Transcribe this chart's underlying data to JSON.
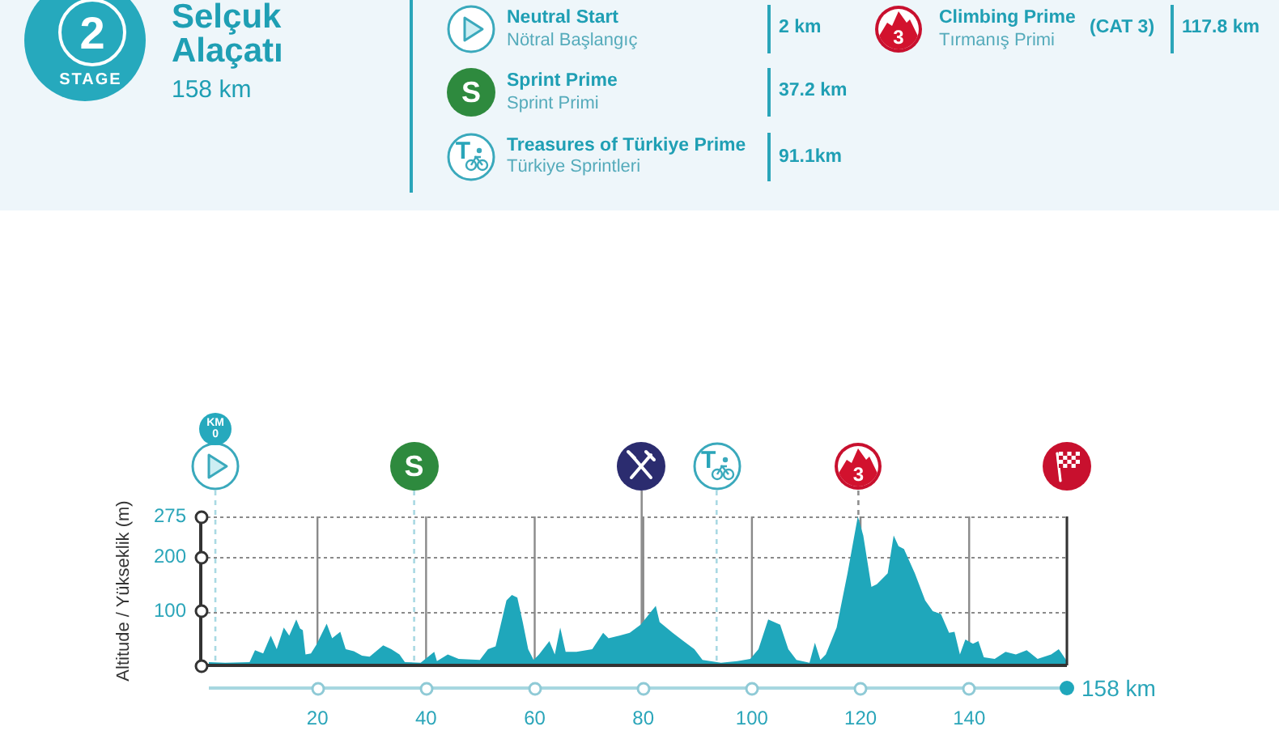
{
  "chart_data": {
    "type": "area",
    "title": "Selçuk Alaçatı",
    "subtitle": "158 km",
    "ylabel": "Altitude / Yükseklik (m)",
    "x": [
      0,
      3,
      7.5,
      8.5,
      10,
      11.4,
      12.5,
      13.8,
      14.8,
      16.1,
      16.8,
      17.3,
      17.8,
      18.8,
      19.8,
      21.7,
      22.7,
      24.2,
      25.2,
      26.7,
      28.2,
      29.6,
      32.1,
      33.6,
      35.1,
      36.1,
      39,
      41.5,
      42,
      44,
      46,
      49.9,
      51.4,
      52.8,
      54.8,
      55.8,
      56.8,
      57.8,
      58.8,
      59.8,
      60.8,
      62.7,
      63.7,
      64.7,
      65.7,
      67.7,
      70.6,
      72.6,
      73.6,
      75.6,
      77.5,
      79.5,
      81.5,
      82.3,
      83,
      85.4,
      87.4,
      89.4,
      90.9,
      94.3,
      97.3,
      99.7,
      101.2,
      103,
      105.2,
      106.7,
      108.2,
      110.6,
      111.6,
      112.6,
      113.6,
      115.6,
      117.6,
      119.5,
      120.5,
      122,
      123,
      125,
      126.1,
      127,
      128,
      130,
      131.9,
      133.3,
      134.8,
      136.3,
      137.3,
      138.3,
      139.3,
      140.7,
      141.7,
      142.7,
      144.7,
      146.7,
      148.6,
      150.6,
      152.6,
      155.1,
      156.5,
      158
    ],
    "values": [
      6,
      5,
      6,
      28,
      22,
      55,
      30,
      70,
      55,
      85,
      68,
      65,
      20,
      22,
      38,
      77,
      50,
      62,
      30,
      26,
      18,
      16,
      37,
      30,
      20,
      6,
      5,
      25,
      8,
      20,
      12,
      10,
      30,
      35,
      120,
      130,
      125,
      80,
      30,
      10,
      20,
      45,
      20,
      70,
      25,
      25,
      30,
      60,
      50,
      55,
      60,
      75,
      100,
      110,
      80,
      60,
      45,
      30,
      10,
      5,
      8,
      12,
      30,
      85,
      75,
      30,
      10,
      5,
      42,
      10,
      20,
      70,
      170,
      275,
      240,
      145,
      150,
      170,
      240,
      220,
      215,
      170,
      120,
      100,
      95,
      60,
      62,
      20,
      48,
      40,
      45,
      15,
      12,
      25,
      20,
      28,
      12,
      20,
      30,
      8
    ],
    "color": "#1fa7bb",
    "xlim": [
      0,
      158
    ],
    "xticks": [
      20,
      40,
      60,
      80,
      100,
      120,
      140,
      {
        "value": 158,
        "label": null
      }
    ],
    "ylim": [
      0,
      275
    ],
    "yticks": [
      {
        "value": 0,
        "label": null
      },
      100,
      200,
      275
    ],
    "grid": true,
    "ref_lines": [
      {
        "axis": "x",
        "value": 1.2,
        "color": "#a9d9e3",
        "line_style": "dashed"
      },
      {
        "axis": "x",
        "value": 37.8,
        "color": "#a9d9e3",
        "line_style": "dashed"
      },
      {
        "axis": "x",
        "value": 79.7,
        "color": "#8f8f8f",
        "line_style": "solid"
      },
      {
        "axis": "x",
        "value": 93.5,
        "color": "#a9d9e3",
        "line_style": "dashed"
      },
      {
        "axis": "x",
        "value": 119.6,
        "color": "#8f8f8f",
        "line_style": "dashed"
      }
    ],
    "annotations": [
      "2",
      "STAGE",
      "Neutral Start",
      "Nötral Başlangıç",
      "2 km",
      "Sprint Prime",
      "Sprint Primi",
      "37.2 km",
      "Treasures of Türkiye Prime",
      "Türkiye Sprintleri",
      "91.1km",
      "Climbing Prime",
      "Tırmanış Primi",
      "(CAT 3)",
      "117.8 km",
      "S",
      "T",
      "3",
      "KM 0",
      "S",
      "T",
      "3",
      "158 km"
    ]
  }
}
